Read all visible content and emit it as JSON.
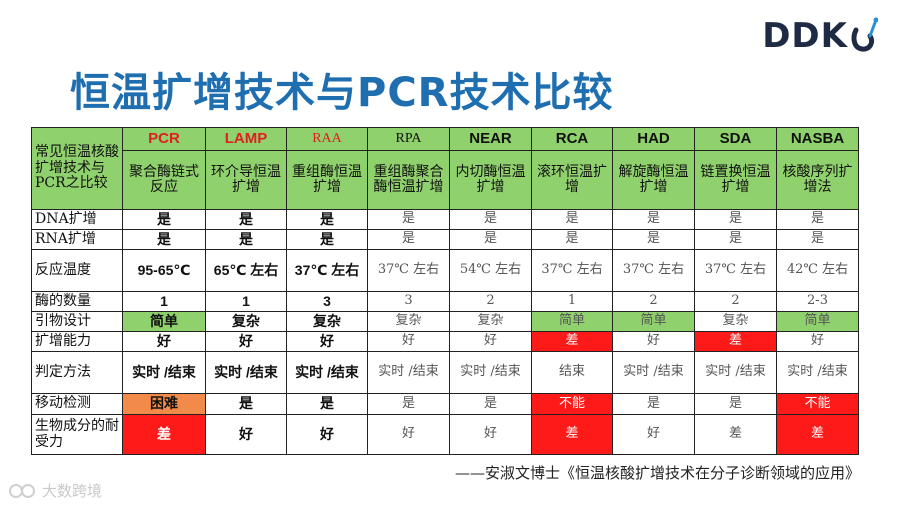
{
  "logo": {
    "text": "DDK"
  },
  "title": "恒温扩增技术与PCR技术比较",
  "table": {
    "corner": "常见恒温核酸扩增技术与PCR之比较",
    "columns": [
      {
        "name": "PCR",
        "desc": "聚合酶链式反应"
      },
      {
        "name": "LAMP",
        "desc": "环介导恒温扩增"
      },
      {
        "name": "RAA",
        "desc": "重组酶恒温扩增"
      },
      {
        "name": "RPA",
        "desc": "重组酶聚合酶恒温扩增"
      },
      {
        "name": "NEAR",
        "desc": "内切酶恒温扩增"
      },
      {
        "name": "RCA",
        "desc": "滚环恒温扩增"
      },
      {
        "name": "HAD",
        "desc": "解旋酶恒温扩增"
      },
      {
        "name": "SDA",
        "desc": "链置换恒温扩增"
      },
      {
        "name": "NASBA",
        "desc": "核酸序列扩增法"
      }
    ],
    "rows": [
      {
        "label": "DNA扩增",
        "cells": [
          "是",
          "是",
          "是",
          "是",
          "是",
          "是",
          "是",
          "是",
          "是"
        ]
      },
      {
        "label": "RNA扩增",
        "cells": [
          "是",
          "是",
          "是",
          "是",
          "是",
          "是",
          "是",
          "是",
          "是"
        ]
      },
      {
        "label": "反应温度",
        "cells": [
          "95-65℃",
          "65℃ 左右",
          "37℃ 左右",
          "37℃ 左右",
          "54℃ 左右",
          "37℃ 左右",
          "37℃ 左右",
          "37℃ 左右",
          "42℃ 左右"
        ]
      },
      {
        "label": "酶的数量",
        "cells": [
          "1",
          "1",
          "3",
          "3",
          "2",
          "1",
          "2",
          "2",
          "2-3"
        ]
      },
      {
        "label": "引物设计",
        "cells": [
          "简单",
          "复杂",
          "复杂",
          "复杂",
          "复杂",
          "简单",
          "简单",
          "复杂",
          "简单"
        ]
      },
      {
        "label": "扩增能力",
        "cells": [
          "好",
          "好",
          "好",
          "好",
          "好",
          "差",
          "好",
          "差",
          "好"
        ]
      },
      {
        "label": "判定方法",
        "cells": [
          "实时 /结束",
          "实时 /结束",
          "实时 /结束",
          "实时 /结束",
          "实时 /结束",
          "结束",
          "实时 /结束",
          "实时 /结束",
          "实时 /结束"
        ]
      },
      {
        "label": "移动检测",
        "cells": [
          "困难",
          "是",
          "是",
          "是",
          "是",
          "不能",
          "是",
          "是",
          "不能"
        ]
      },
      {
        "label": "生物成分的耐受力",
        "cells": [
          "差",
          "好",
          "好",
          "好",
          "好",
          "差",
          "好",
          "差",
          "差"
        ]
      }
    ]
  },
  "citation": "——安淑文博士《恒温核酸扩增技术在分子诊断领域的应用》",
  "watermark": "大数跨境",
  "colors": {
    "header_green": "#8fd16c",
    "highlight_red": "#ff1a1a",
    "highlight_orange": "#f28b4a",
    "title_blue": "#1f6fb0"
  }
}
